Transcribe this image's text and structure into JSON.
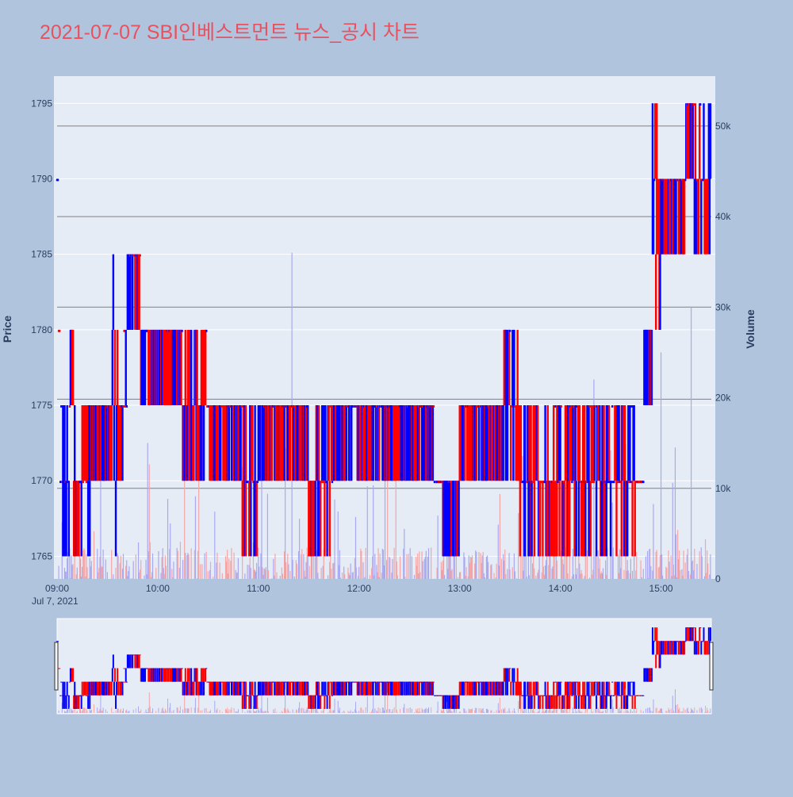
{
  "title": "2021-07-07 SBI인베스트먼트 뉴스_공시 차트",
  "colors": {
    "background": "#b0c4de",
    "plot_bg": "#e5ecf6",
    "title": "#e8525f",
    "up": "#ff0000",
    "down": "#0000ff",
    "volume_up": "#f4a6a6",
    "volume_down": "#a9a9f2",
    "grid": "#ffffff",
    "reference_line": "#808080",
    "axis_text": "#2a3f5f"
  },
  "chart_data": {
    "type": "line",
    "title": "2021-07-07 SBI인베스트먼트 뉴스_공시 차트",
    "ylabel": "Price",
    "y2label": "Volume",
    "date_label": "Jul 7, 2021",
    "ylim": [
      1763.5,
      1796.8
    ],
    "y2lim": [
      0,
      55500
    ],
    "x_range": [
      "09:00",
      "15:30"
    ],
    "y_ticks": [
      "1765",
      "1770",
      "1775",
      "1780",
      "1785",
      "1790",
      "1795"
    ],
    "y2_ticks": [
      "0",
      "10k",
      "20k",
      "30k",
      "40k",
      "50k"
    ],
    "x_ticks": [
      "09:00",
      "10:00",
      "11:00",
      "12:00",
      "13:00",
      "14:00",
      "15:00"
    ],
    "horizontal_lines": [
      1769.5,
      1775.4,
      1781.5,
      1787.5,
      1793.5
    ],
    "grid": true,
    "rangeslider": true,
    "price_segments": [
      {
        "t": "09:00",
        "price": 1790
      },
      {
        "t": "09:01",
        "price": 1780
      },
      {
        "t": "09:02",
        "price": 1770,
        "range": [
          1765,
          1775
        ]
      },
      {
        "t": "09:08",
        "price": 1780,
        "range": [
          1775,
          1780
        ]
      },
      {
        "t": "09:10",
        "price": 1770,
        "range": [
          1765,
          1775
        ]
      },
      {
        "t": "09:20",
        "price": 1772,
        "range": [
          1770,
          1775
        ]
      },
      {
        "t": "09:33",
        "price": 1790,
        "range": [
          1765,
          1790
        ]
      },
      {
        "t": "09:37",
        "price": 1772,
        "range": [
          1770,
          1780
        ]
      },
      {
        "t": "09:42",
        "price": 1782,
        "range": [
          1780,
          1785
        ]
      },
      {
        "t": "09:50",
        "price": 1778,
        "range": [
          1775,
          1780
        ]
      },
      {
        "t": "10:15",
        "price": 1775,
        "range": [
          1770,
          1780
        ]
      },
      {
        "t": "10:30",
        "price": 1772,
        "range": [
          1770,
          1775
        ]
      },
      {
        "t": "10:50",
        "price": 1768,
        "range": [
          1765,
          1775
        ]
      },
      {
        "t": "11:00",
        "price": 1772,
        "range": [
          1770,
          1775
        ]
      },
      {
        "t": "11:30",
        "price": 1768,
        "range": [
          1765,
          1775
        ]
      },
      {
        "t": "11:45",
        "price": 1772,
        "range": [
          1770,
          1775
        ]
      },
      {
        "t": "12:30",
        "price": 1772,
        "range": [
          1770,
          1775
        ]
      },
      {
        "t": "12:45",
        "price": 1770,
        "range": [
          1770,
          1770
        ]
      },
      {
        "t": "12:50",
        "price": 1768,
        "range": [
          1765,
          1770
        ]
      },
      {
        "t": "13:00",
        "price": 1772,
        "range": [
          1770,
          1775
        ]
      },
      {
        "t": "13:25",
        "price": 1776,
        "range": [
          1770,
          1780
        ]
      },
      {
        "t": "13:35",
        "price": 1772,
        "range": [
          1765,
          1775
        ]
      },
      {
        "t": "14:00",
        "price": 1770,
        "range": [
          1765,
          1775
        ]
      },
      {
        "t": "14:30",
        "price": 1768,
        "range": [
          1765,
          1775
        ]
      },
      {
        "t": "14:45",
        "price": 1770,
        "range": [
          1770,
          1770
        ]
      },
      {
        "t": "14:50",
        "price": 1778,
        "range": [
          1775,
          1780
        ]
      },
      {
        "t": "14:55",
        "price": 1785,
        "range": [
          1780,
          1795
        ]
      },
      {
        "t": "15:00",
        "price": 1788,
        "range": [
          1785,
          1790
        ]
      },
      {
        "t": "15:15",
        "price": 1792,
        "range": [
          1790,
          1795
        ]
      },
      {
        "t": "15:20",
        "price": 1785,
        "range": [
          1785,
          1795
        ]
      },
      {
        "t": "15:30",
        "price": 1785
      }
    ]
  }
}
